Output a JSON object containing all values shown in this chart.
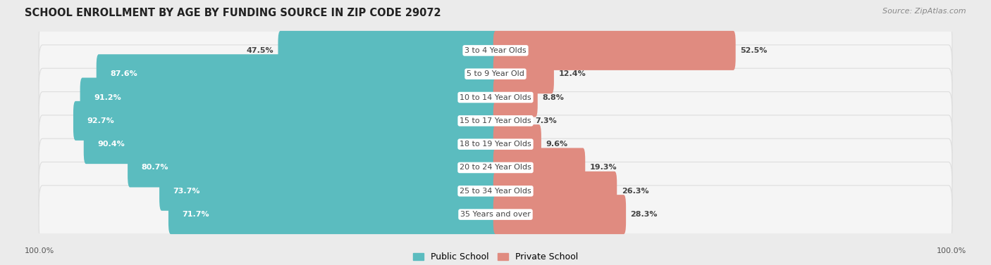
{
  "title": "SCHOOL ENROLLMENT BY AGE BY FUNDING SOURCE IN ZIP CODE 29072",
  "source": "Source: ZipAtlas.com",
  "categories": [
    "3 to 4 Year Olds",
    "5 to 9 Year Old",
    "10 to 14 Year Olds",
    "15 to 17 Year Olds",
    "18 to 19 Year Olds",
    "20 to 24 Year Olds",
    "25 to 34 Year Olds",
    "35 Years and over"
  ],
  "public_pct": [
    47.5,
    87.6,
    91.2,
    92.7,
    90.4,
    80.7,
    73.7,
    71.7
  ],
  "private_pct": [
    52.5,
    12.4,
    8.8,
    7.3,
    9.6,
    19.3,
    26.3,
    28.3
  ],
  "public_color": "#5BBCBF",
  "private_color": "#E08B80",
  "public_label": "Public School",
  "private_label": "Private School",
  "bg_color": "#EBEBEB",
  "row_bg_color": "#F5F5F5",
  "row_edge_color": "#DDDDDD",
  "axis_label_left": "100.0%",
  "axis_label_right": "100.0%",
  "title_fontsize": 10.5,
  "bar_label_fontsize": 8,
  "category_fontsize": 8,
  "legend_fontsize": 9,
  "source_fontsize": 8
}
